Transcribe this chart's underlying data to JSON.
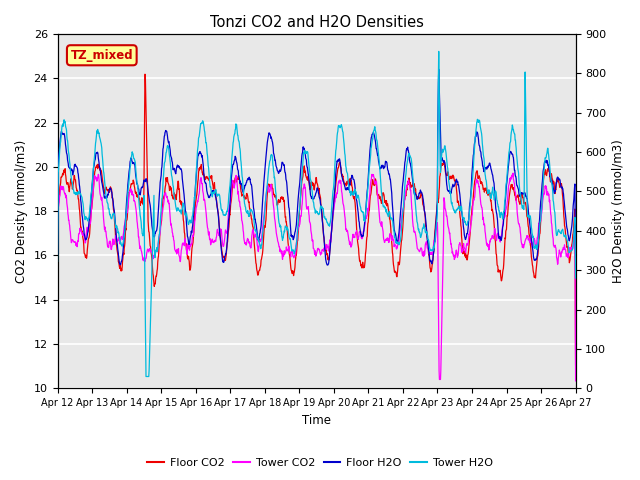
{
  "title": "Tonzi CO2 and H2O Densities",
  "xlabel": "Time",
  "ylabel_left": "CO2 Density (mmol/m3)",
  "ylabel_right": "H2O Density (mmol/m3)",
  "ylim_left": [
    10,
    26
  ],
  "ylim_right": [
    0,
    900
  ],
  "yticks_left": [
    10,
    12,
    14,
    16,
    18,
    20,
    22,
    24,
    26
  ],
  "yticks_right": [
    0,
    100,
    200,
    300,
    400,
    500,
    600,
    700,
    800,
    900
  ],
  "date_labels": [
    "Apr 12",
    "Apr 13",
    "Apr 14",
    "Apr 15",
    "Apr 16",
    "Apr 17",
    "Apr 18",
    "Apr 19",
    "Apr 20",
    "Apr 21",
    "Apr 22",
    "Apr 23",
    "Apr 24",
    "Apr 25",
    "Apr 26",
    "Apr 27"
  ],
  "legend_entries": [
    "Floor CO2",
    "Tower CO2",
    "Floor H2O",
    "Tower H2O"
  ],
  "floor_co2_color": "#EE0000",
  "tower_co2_color": "#FF00FF",
  "floor_h2o_color": "#0000CC",
  "tower_h2o_color": "#00BBDD",
  "annotation_text": "TZ_mixed",
  "annotation_fg": "#CC0000",
  "annotation_bg": "#FFFF99",
  "annotation_border": "#CC0000",
  "plot_bg": "#E8E8E8",
  "grid_color": "#FFFFFF",
  "fig_bg": "#FFFFFF"
}
